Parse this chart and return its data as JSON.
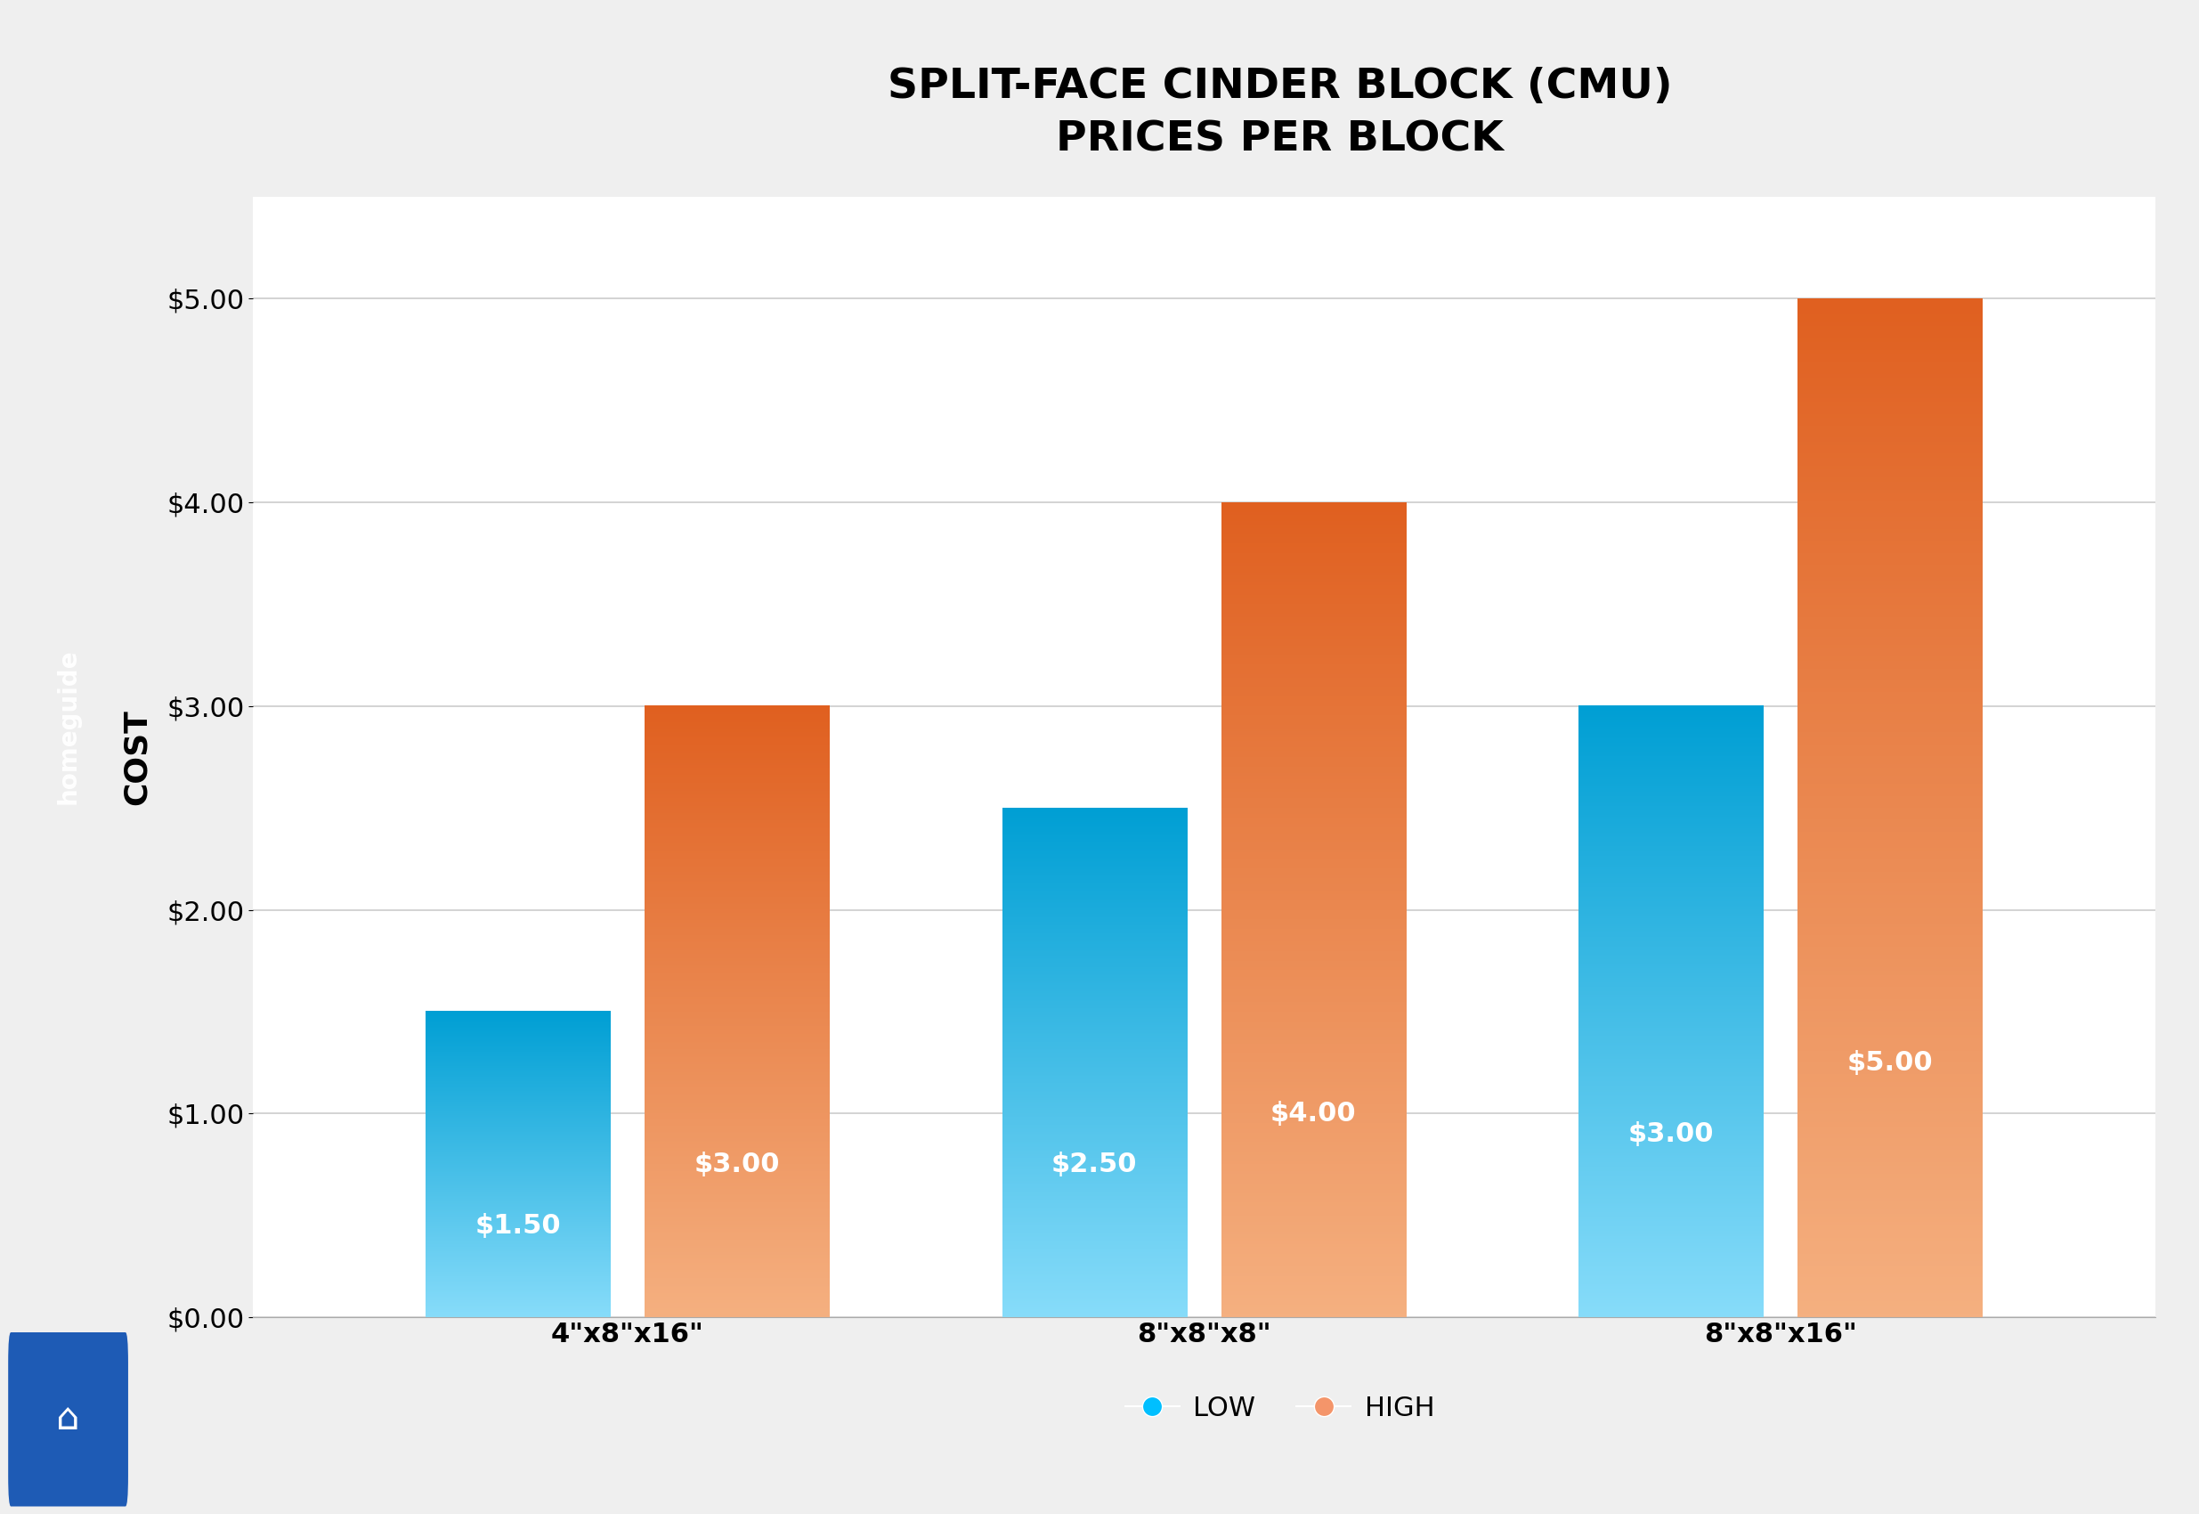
{
  "title": "SPLIT-FACE CINDER BLOCK (CMU)\nPRICES PER BLOCK",
  "categories": [
    "4\"x8\"x16\"",
    "8\"x8\"x8\"",
    "8\"x8\"x16\""
  ],
  "low_values": [
    1.5,
    2.5,
    3.0
  ],
  "high_values": [
    3.0,
    4.0,
    5.0
  ],
  "ylabel": "COST",
  "ylim": [
    0,
    5.5
  ],
  "yticks": [
    0.0,
    1.0,
    2.0,
    3.0,
    4.0,
    5.0
  ],
  "bar_width": 0.32,
  "bar_gap": 0.06,
  "background_color": "#efefef",
  "plot_bg_color": "#ffffff",
  "grid_color": "#cccccc",
  "legend_low_color": "#00BFFF",
  "legend_high_color": "#F4956A",
  "left_panel_color": "#1a1a1a",
  "low_bar_bottom": "#87DCFA",
  "low_bar_top": "#009FD4",
  "high_bar_bottom": "#F5B080",
  "high_bar_top": "#E06020",
  "title_fontsize": 34,
  "ylabel_fontsize": 26,
  "xlabel_fontsize": 22,
  "bar_label_fontsize": 22,
  "legend_fontsize": 22,
  "tick_fontsize": 22
}
